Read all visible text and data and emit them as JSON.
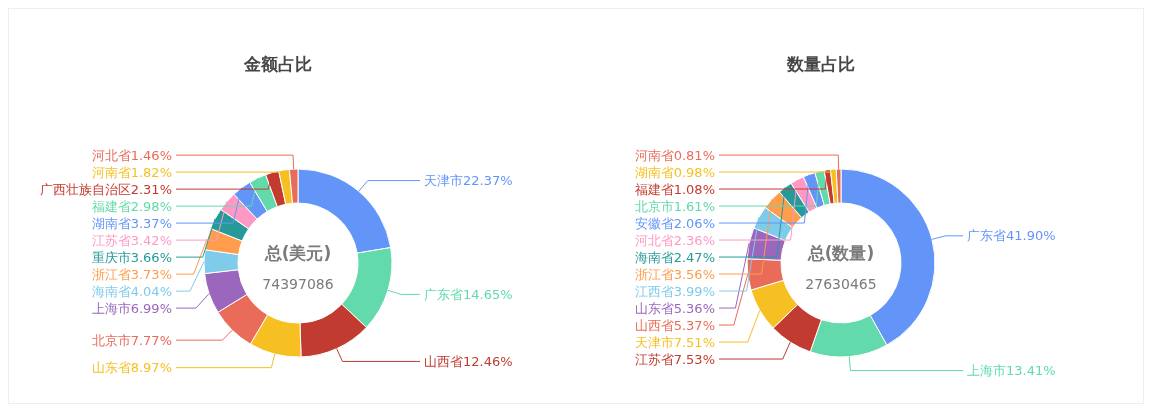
{
  "chart_data": [
    {
      "type": "donut",
      "title": "金额占比",
      "annotations": [
        "总(美元)",
        "74397086"
      ],
      "categories": [
        "天津市",
        "广东省",
        "山西省",
        "山东省",
        "北京市",
        "上海市",
        "海南省",
        "浙江省",
        "重庆市",
        "江苏省",
        "湖南省",
        "福建省",
        "广西壮族自治区",
        "河南省",
        "河北省"
      ],
      "values": [
        22.37,
        14.65,
        12.46,
        8.97,
        7.77,
        6.99,
        4.04,
        3.73,
        3.66,
        3.42,
        3.37,
        2.98,
        2.31,
        1.82,
        1.46
      ],
      "value_labels": [
        "22.37%",
        "14.65%",
        "12.46%",
        "8.97%",
        "7.77%",
        "6.99%",
        "4.04%",
        "3.73%",
        "3.66%",
        "3.42%",
        "3.37%",
        "2.98%",
        "2.31%",
        "1.82%",
        "1.46%"
      ],
      "colors": [
        "#6395f9",
        "#62daab",
        "#c23b30",
        "#f6c022",
        "#e96c5b",
        "#9a67bd",
        "#7ecbea",
        "#ff9d4d",
        "#269a99",
        "#ff99c3",
        "#6395f9",
        "#62daab",
        "#c23b30",
        "#f6c022",
        "#e96c5b"
      ]
    },
    {
      "type": "donut",
      "title": "数量占比",
      "annotations": [
        "总(数量)",
        "27630465"
      ],
      "categories": [
        "广东省",
        "上海市",
        "江苏省",
        "天津市",
        "山西省",
        "山东省",
        "江西省",
        "浙江省",
        "海南省",
        "河北省",
        "安徽省",
        "北京市",
        "福建省",
        "湖南省",
        "河南省"
      ],
      "values": [
        41.9,
        13.41,
        7.53,
        7.51,
        5.37,
        5.36,
        3.99,
        3.56,
        2.47,
        2.36,
        2.06,
        1.61,
        1.08,
        0.98,
        0.81
      ],
      "value_labels": [
        "41.90%",
        "13.41%",
        "7.53%",
        "7.51%",
        "5.37%",
        "5.36%",
        "3.99%",
        "3.56%",
        "2.47%",
        "2.36%",
        "2.06%",
        "1.61%",
        "1.08%",
        "0.98%",
        "0.81%"
      ],
      "colors": [
        "#6395f9",
        "#62daab",
        "#c23b30",
        "#f6c022",
        "#e96c5b",
        "#9a67bd",
        "#7ecbea",
        "#ff9d4d",
        "#269a99",
        "#ff99c3",
        "#6395f9",
        "#62daab",
        "#c23b30",
        "#f6c022",
        "#e96c5b"
      ]
    }
  ]
}
